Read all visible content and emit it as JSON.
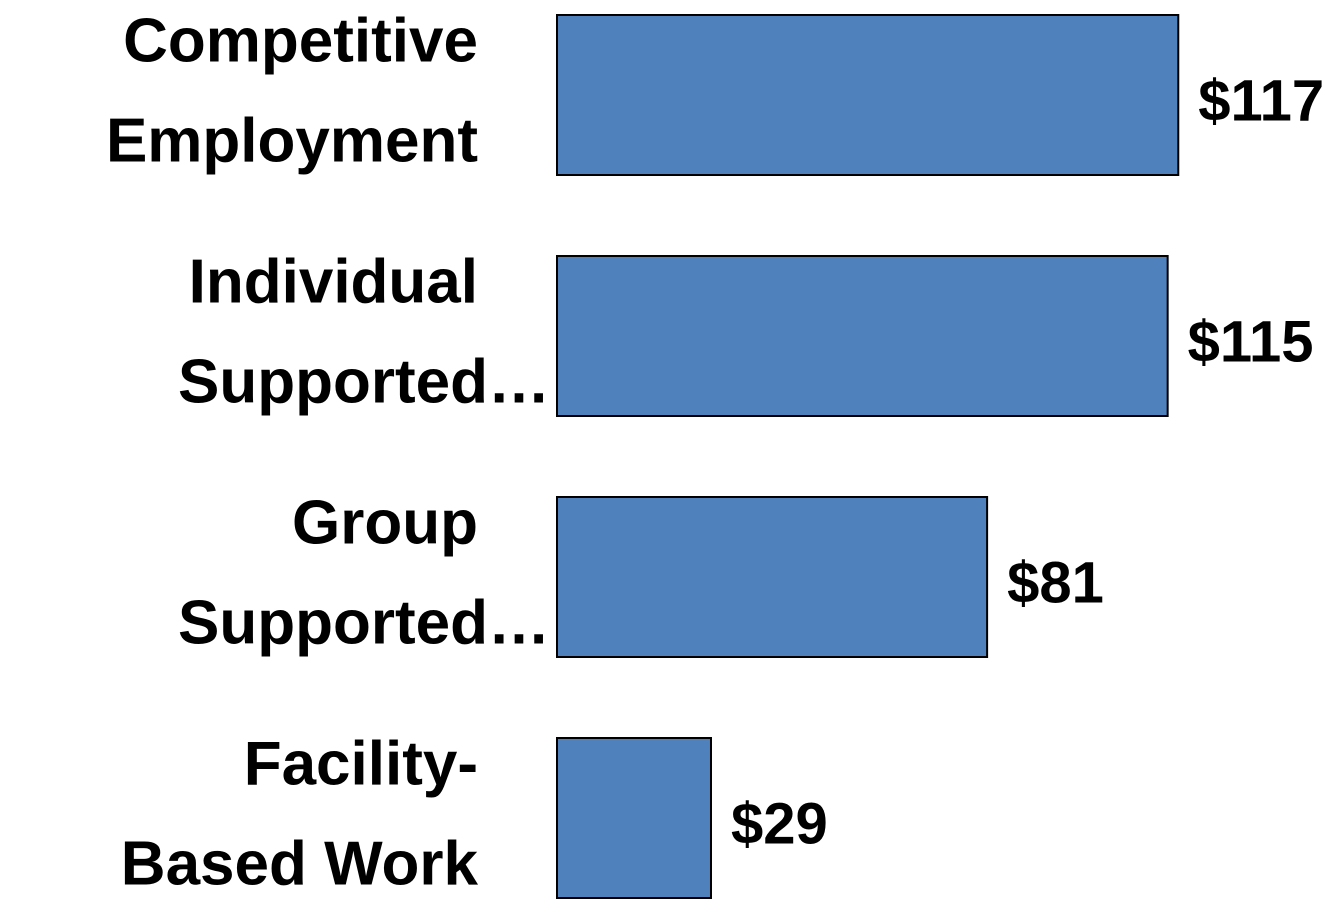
{
  "chart_data": {
    "type": "bar",
    "orientation": "horizontal",
    "categories": [
      [
        "Competitive",
        "Employment"
      ],
      [
        "Individual",
        "Supported…"
      ],
      [
        "Group",
        "Supported…"
      ],
      [
        "Facility-",
        "Based Work"
      ]
    ],
    "values": [
      117,
      115,
      81,
      29
    ],
    "value_labels": [
      "$117",
      "$115",
      "$81",
      "$29"
    ],
    "color": "#4f81bd"
  }
}
